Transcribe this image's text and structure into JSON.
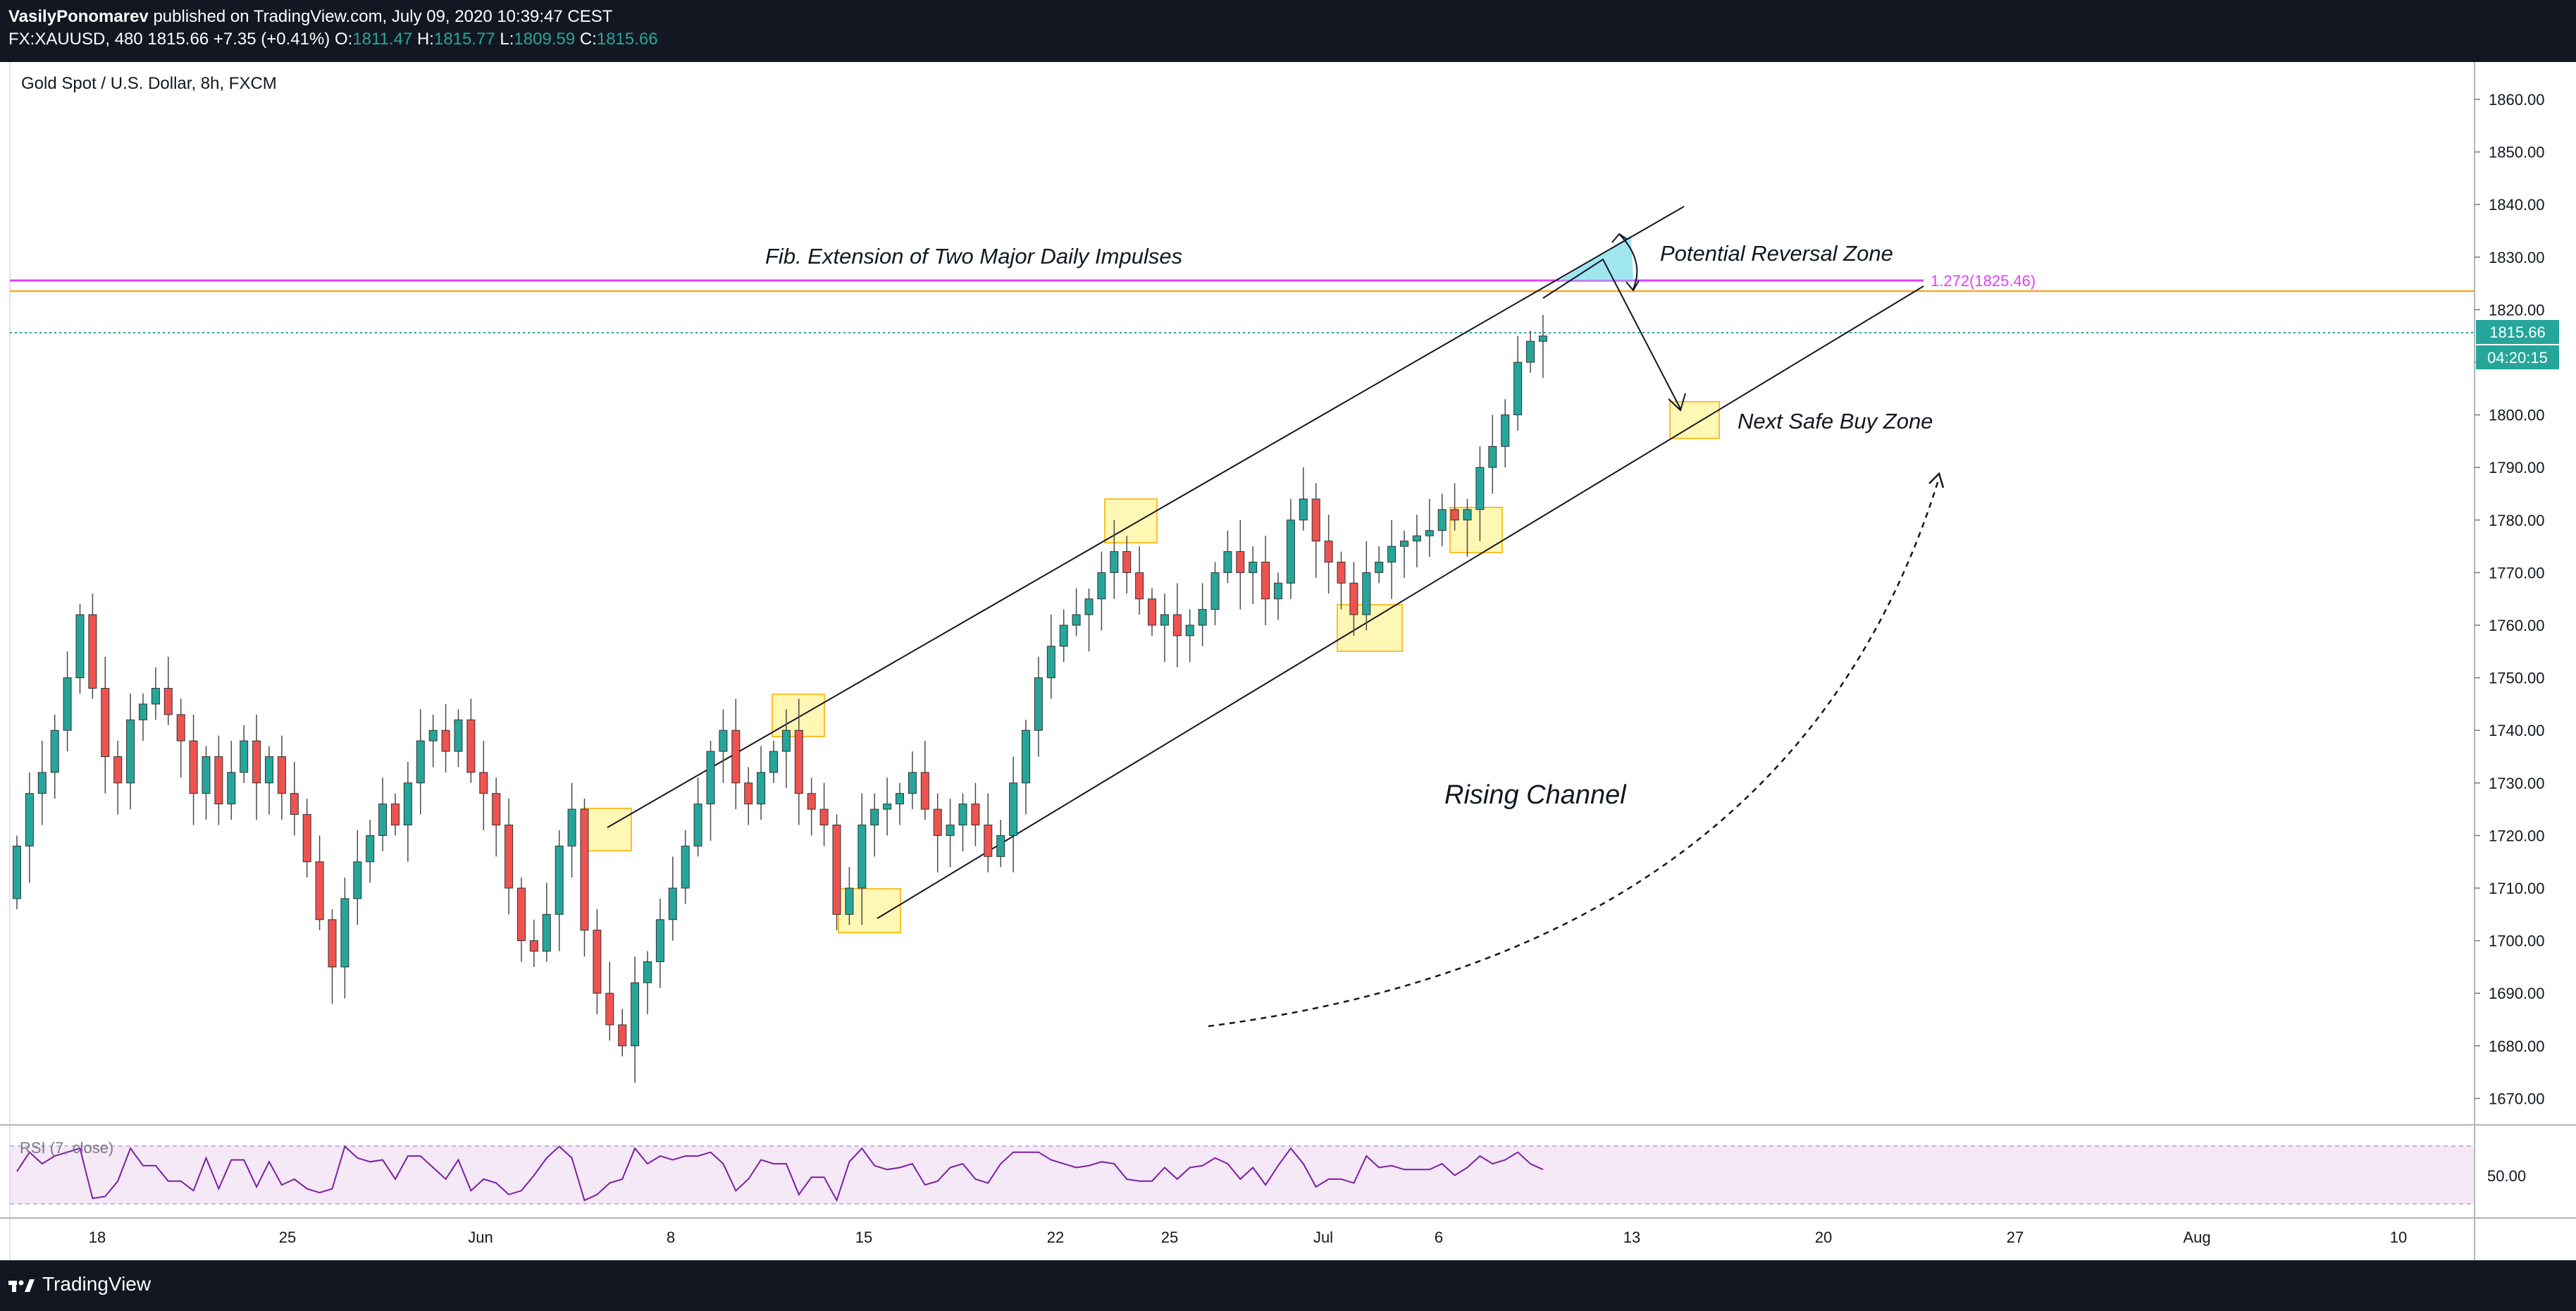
{
  "header": {
    "author": "VasilyPonomarev",
    "published": "published on TradingView.com, July 09, 2020 10:39:47 CEST",
    "symbol": "FX:XAUUSD, 480",
    "last": "1815.66",
    "change": "+7.35 (+0.41%)",
    "o_label": "O:",
    "o": "1811.47",
    "h_label": "H:",
    "h": "1815.77",
    "l_label": "L:",
    "l": "1809.59",
    "c_label": "C:",
    "c": "1815.66"
  },
  "chart_title": "Gold Spot / U.S. Dollar, 8h, FXCM",
  "price_axis": {
    "ticks": [
      "1860.00",
      "1850.00",
      "1840.00",
      "1830.00",
      "1820.00",
      "1810.00",
      "1800.00",
      "1790.00",
      "1780.00",
      "1770.00",
      "1760.00",
      "1750.00",
      "1740.00",
      "1730.00",
      "1720.00",
      "1710.00",
      "1700.00",
      "1690.00",
      "1680.00",
      "1670.00"
    ]
  },
  "last_price_label": "1815.66",
  "countdown_label": "04:20:15",
  "fib_label": "1.272(1825.46)",
  "annotations": {
    "fib_text": "Fib. Extension of Two Major Daily Impulses",
    "reversal_text": "Potential Reversal Zone",
    "buy_text": "Next Safe Buy Zone",
    "channel_text": "Rising Channel"
  },
  "rsi": {
    "label": "RSI (7, close)",
    "level_label": "50.00"
  },
  "time_axis": {
    "labels": [
      "18",
      "25",
      "Jun",
      "8",
      "15",
      "22",
      "25",
      "Jul",
      "6",
      "13",
      "20",
      "27",
      "Aug",
      "10"
    ]
  },
  "colors": {
    "up": "#26a69a",
    "down": "#ef5350",
    "fib": "#e040fb",
    "orange": "#f9a825",
    "highlight": "#fff176",
    "reversal": "#80deea"
  },
  "footer": {
    "brand": "TradingView"
  },
  "chart_data": {
    "type": "candlestick",
    "title": "Gold Spot / U.S. Dollar, 8h, FXCM",
    "ylim": [
      1665,
      1865
    ],
    "last": 1815.66,
    "fib_level": 1825.46,
    "series": [
      {
        "name": "close",
        "values": [
          1718,
          1728,
          1732,
          1740,
          1750,
          1762,
          1748,
          1735,
          1730,
          1742,
          1745,
          1748,
          1743,
          1738,
          1728,
          1735,
          1726,
          1732,
          1738,
          1730,
          1735,
          1728,
          1724,
          1715,
          1704,
          1695,
          1708,
          1715,
          1720,
          1726,
          1722,
          1730,
          1738,
          1740,
          1736,
          1742,
          1732,
          1728,
          1722,
          1710,
          1700,
          1698,
          1705,
          1718,
          1725,
          1702,
          1690,
          1684,
          1680,
          1692,
          1696,
          1704,
          1710,
          1718,
          1726,
          1736,
          1740,
          1730,
          1726,
          1732,
          1736,
          1740,
          1728,
          1725,
          1722,
          1705,
          1710,
          1722,
          1725,
          1726,
          1728,
          1732,
          1725,
          1720,
          1722,
          1726,
          1722,
          1716,
          1720,
          1730,
          1740,
          1750,
          1756,
          1760,
          1762,
          1765,
          1770,
          1774,
          1770,
          1765,
          1760,
          1762,
          1758,
          1760,
          1763,
          1770,
          1774,
          1770,
          1772,
          1765,
          1768,
          1780,
          1784,
          1776,
          1772,
          1768,
          1762,
          1770,
          1772,
          1775,
          1776,
          1777,
          1778,
          1782,
          1780,
          1782,
          1790,
          1794,
          1800,
          1810,
          1814,
          1815
        ]
      },
      {
        "name": "open",
        "values": [
          1708,
          1718,
          1728,
          1732,
          1740,
          1750,
          1762,
          1748,
          1735,
          1730,
          1742,
          1745,
          1748,
          1743,
          1738,
          1728,
          1735,
          1726,
          1732,
          1738,
          1730,
          1735,
          1728,
          1724,
          1715,
          1704,
          1695,
          1708,
          1715,
          1720,
          1726,
          1722,
          1730,
          1738,
          1740,
          1736,
          1742,
          1732,
          1728,
          1722,
          1710,
          1700,
          1698,
          1705,
          1718,
          1725,
          1702,
          1690,
          1684,
          1680,
          1692,
          1696,
          1704,
          1710,
          1718,
          1726,
          1736,
          1740,
          1730,
          1726,
          1732,
          1736,
          1740,
          1728,
          1725,
          1722,
          1705,
          1710,
          1722,
          1725,
          1726,
          1728,
          1732,
          1725,
          1720,
          1722,
          1726,
          1722,
          1716,
          1720,
          1730,
          1740,
          1750,
          1756,
          1760,
          1762,
          1765,
          1770,
          1774,
          1770,
          1765,
          1760,
          1762,
          1758,
          1760,
          1763,
          1770,
          1774,
          1770,
          1772,
          1765,
          1768,
          1780,
          1784,
          1776,
          1772,
          1768,
          1762,
          1770,
          1772,
          1775,
          1776,
          1777,
          1778,
          1782,
          1780,
          1782,
          1790,
          1794,
          1800,
          1810,
          1814
        ]
      }
    ]
  }
}
